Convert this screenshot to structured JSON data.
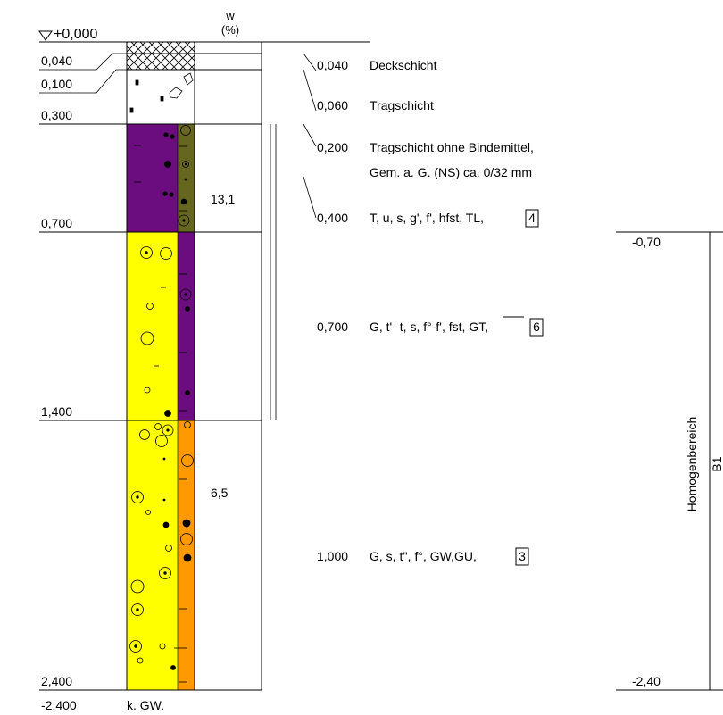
{
  "header": {
    "top_level": "+0,000",
    "w_symbol": "w",
    "w_unit": "(%)"
  },
  "depth_markers": {
    "d1": "0,040",
    "d2": "0,100",
    "d3": "0,300",
    "d4": "0,700",
    "d5": "1,400",
    "d6": "2,400"
  },
  "bottom": {
    "depth": "-2,400",
    "groundwater": "k. GW."
  },
  "water_content": {
    "w1": "13,1",
    "w2": "6,5"
  },
  "layers": [
    {
      "thickness": "0,040",
      "desc": "Deckschicht"
    },
    {
      "thickness": "0,060",
      "desc": "Tragschicht"
    },
    {
      "thickness": "0,200",
      "desc": "Tragschicht ohne Bindemittel,",
      "desc2": "Gem. a. G. (NS) ca. 0/32 mm"
    },
    {
      "thickness": "0,400",
      "desc": "T, u, s, g', f', hfst, TL,",
      "class": "4"
    },
    {
      "thickness": "0,700",
      "desc_pre": "G, t'- t, s, f°-f', fst,",
      "desc_over": "GT",
      "desc_post": ",",
      "class": "6"
    },
    {
      "thickness": "1,000",
      "desc": "G, s, t'', f°, GW,GU,",
      "class": "3"
    }
  ],
  "homogeneous_area": {
    "top": "-0,70",
    "bottom": "-2,40",
    "label": "Homogenbereich",
    "code": "B1"
  },
  "colors": {
    "purple": "#6b0d7e",
    "olive": "#666621",
    "yellow": "#ffff00",
    "orange": "#ff9900"
  }
}
